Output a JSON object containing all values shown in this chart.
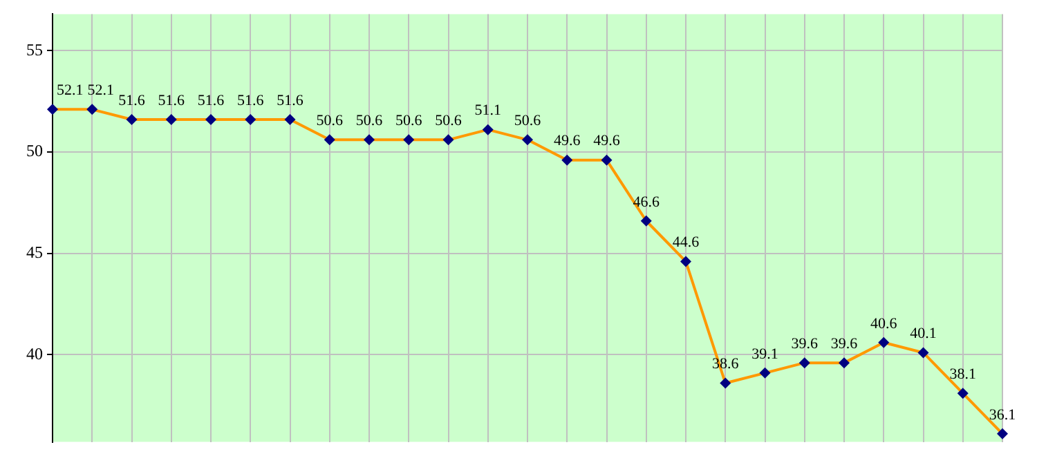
{
  "chart_data": {
    "type": "line",
    "categories": [
      null,
      null,
      null,
      null,
      null,
      null,
      null,
      null,
      null,
      null,
      null,
      null,
      null,
      null,
      null,
      null,
      null,
      null,
      null,
      null,
      null,
      null,
      null,
      null,
      null
    ],
    "series": [
      {
        "color": "#ff9900",
        "values": [
          52.1,
          52.1,
          51.6,
          51.6,
          51.6,
          51.6,
          51.6,
          50.6,
          50.6,
          50.6,
          50.6,
          51.1,
          50.6,
          49.6,
          49.6,
          46.6,
          44.6,
          38.6,
          39.1,
          39.6,
          39.6,
          40.6,
          40.1,
          38.1,
          36.1
        ]
      }
    ],
    "ylim": [
      35.7,
      56.8
    ],
    "yticks": [
      40,
      45,
      50,
      55
    ],
    "grid": true,
    "legend": false,
    "marker": "diamond",
    "line_style": "solid",
    "data_labels": true
  }
}
